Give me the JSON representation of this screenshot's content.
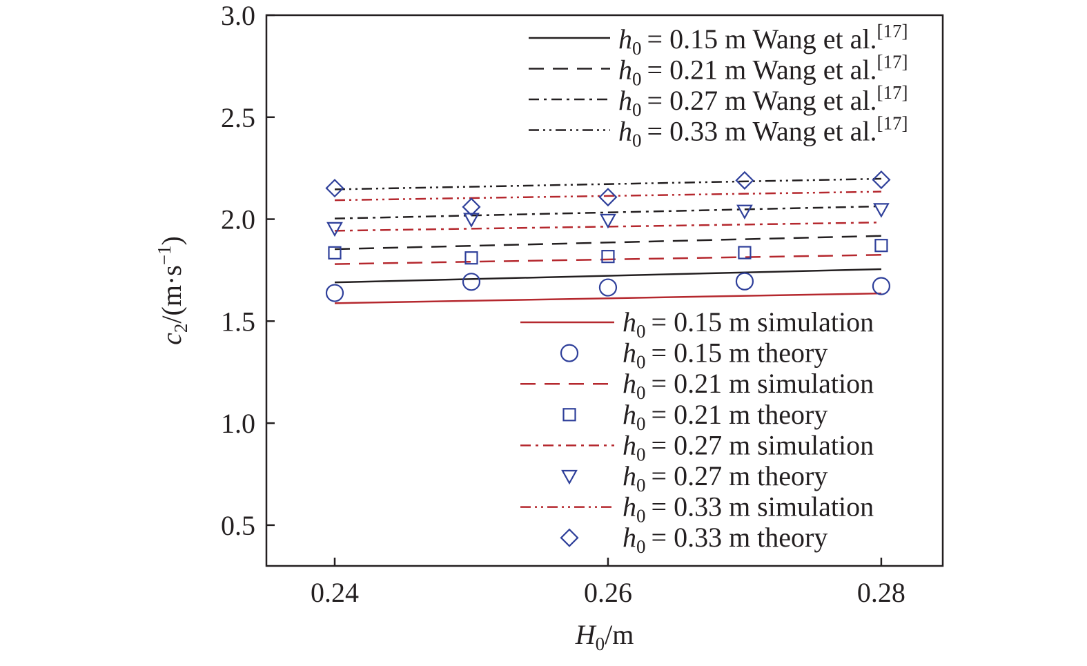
{
  "chart_data": {
    "type": "line",
    "xlabel": "H0/m",
    "ylabel": "c2/(m·s−1)",
    "xlim": [
      0.235,
      0.2845
    ],
    "ylim": [
      0.3,
      3.0
    ],
    "x_ticks": [
      0.24,
      0.26,
      0.28
    ],
    "x_tick_labels": [
      "0.24",
      "0.26",
      "0.28"
    ],
    "y_ticks": [
      0.5,
      1.0,
      1.5,
      2.0,
      2.5,
      3.0
    ],
    "y_tick_labels": [
      "0.5",
      "1.0",
      "1.5",
      "2.0",
      "2.5",
      "3.0"
    ],
    "grid": false,
    "legend_placement": [
      "top-right",
      "bottom-right"
    ],
    "colors": {
      "wang": "#231f20",
      "simulation": "#b5282e",
      "theory": "#2e3f9a",
      "axis": "#231f20"
    },
    "series": [
      {
        "name": "h0 = 0.15 m Wang et al.[17]",
        "group": "wang",
        "style": "solid",
        "x": [
          0.24,
          0.28
        ],
        "y": [
          1.69,
          1.755
        ]
      },
      {
        "name": "h0 = 0.21 m Wang et al.[17]",
        "group": "wang",
        "style": "dash",
        "x": [
          0.24,
          0.28
        ],
        "y": [
          1.853,
          1.918
        ]
      },
      {
        "name": "h0 = 0.27 m Wang et al.[17]",
        "group": "wang",
        "style": "dashdot",
        "x": [
          0.24,
          0.28
        ],
        "y": [
          2.003,
          2.063
        ]
      },
      {
        "name": "h0 = 0.33 m Wang et al.[17]",
        "group": "wang",
        "style": "dashdotdot",
        "x": [
          0.24,
          0.28
        ],
        "y": [
          2.146,
          2.198
        ]
      },
      {
        "name": "h0 = 0.15 m simulation",
        "group": "simulation",
        "style": "solid",
        "x": [
          0.24,
          0.28
        ],
        "y": [
          1.588,
          1.636
        ]
      },
      {
        "name": "h0 = 0.15 m theory",
        "group": "theory",
        "marker": "circle",
        "x": [
          0.24,
          0.25,
          0.26,
          0.27,
          0.28
        ],
        "y": [
          1.638,
          1.693,
          1.665,
          1.695,
          1.672
        ]
      },
      {
        "name": "h0 = 0.21 m simulation",
        "group": "simulation",
        "style": "dash",
        "x": [
          0.24,
          0.28
        ],
        "y": [
          1.78,
          1.825
        ]
      },
      {
        "name": "h0 = 0.21 m theory",
        "group": "theory",
        "marker": "square",
        "x": [
          0.24,
          0.25,
          0.26,
          0.27,
          0.28
        ],
        "y": [
          1.835,
          1.81,
          1.817,
          1.836,
          1.871
        ]
      },
      {
        "name": "h0 = 0.27 m simulation",
        "group": "simulation",
        "style": "dashdot",
        "x": [
          0.24,
          0.28
        ],
        "y": [
          1.943,
          1.984
        ]
      },
      {
        "name": "h0 = 0.27 m theory",
        "group": "theory",
        "marker": "triangle-down",
        "x": [
          0.24,
          0.25,
          0.26,
          0.27,
          0.28
        ],
        "y": [
          1.955,
          2.0,
          1.995,
          2.04,
          2.048
        ]
      },
      {
        "name": "h0 = 0.33 m simulation",
        "group": "simulation",
        "style": "dashdotdot",
        "x": [
          0.24,
          0.28
        ],
        "y": [
          2.093,
          2.135
        ]
      },
      {
        "name": "h0 = 0.33 m theory",
        "group": "theory",
        "marker": "diamond",
        "x": [
          0.24,
          0.25,
          0.26,
          0.27,
          0.28
        ],
        "y": [
          2.152,
          2.06,
          2.108,
          2.19,
          2.193
        ]
      }
    ],
    "legend_top": [
      {
        "h": "0.15",
        "rest": " m Wang et al.",
        "sup": "[17]",
        "style": "solid"
      },
      {
        "h": "0.21",
        "rest": " m Wang et al.",
        "sup": "[17]",
        "style": "dash"
      },
      {
        "h": "0.27",
        "rest": " m Wang et al.",
        "sup": "[17]",
        "style": "dashdot"
      },
      {
        "h": "0.33",
        "rest": " m Wang et al.",
        "sup": "[17]",
        "style": "dashdotdot"
      }
    ],
    "legend_bottom": [
      {
        "h": "0.15",
        "rest": " m simulation",
        "kind": "line",
        "style": "solid"
      },
      {
        "h": "0.15",
        "rest": " m theory",
        "kind": "marker",
        "marker": "circle"
      },
      {
        "h": "0.21",
        "rest": " m simulation",
        "kind": "line",
        "style": "dash"
      },
      {
        "h": "0.21",
        "rest": " m theory",
        "kind": "marker",
        "marker": "square"
      },
      {
        "h": "0.27",
        "rest": " m simulation",
        "kind": "line",
        "style": "dashdot"
      },
      {
        "h": "0.27",
        "rest": " m theory",
        "kind": "marker",
        "marker": "triangle-down"
      },
      {
        "h": "0.33",
        "rest": " m simulation",
        "kind": "line",
        "style": "dashdotdot"
      },
      {
        "h": "0.33",
        "rest": " m theory",
        "kind": "marker",
        "marker": "diamond"
      }
    ]
  }
}
